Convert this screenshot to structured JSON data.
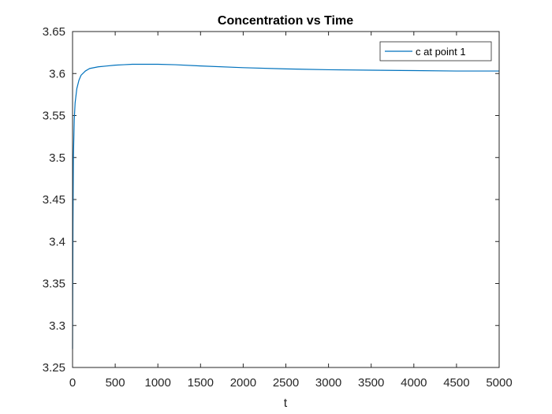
{
  "chart_data": {
    "type": "line",
    "title": "Concentration vs Time",
    "xlabel": "t",
    "ylabel": "",
    "xlim": [
      0,
      5000
    ],
    "ylim": [
      3.25,
      3.65
    ],
    "xticks": [
      0,
      500,
      1000,
      1500,
      2000,
      2500,
      3000,
      3500,
      4000,
      4500,
      5000
    ],
    "xtick_labels": [
      "0",
      "500",
      "1000",
      "1500",
      "2000",
      "2500",
      "3000",
      "3500",
      "4000",
      "4500",
      "5000"
    ],
    "yticks": [
      3.25,
      3.3,
      3.35,
      3.4,
      3.45,
      3.5,
      3.55,
      3.6,
      3.65
    ],
    "ytick_labels": [
      "3.25",
      "3.3",
      "3.35",
      "3.4",
      "3.45",
      "3.5",
      "3.55",
      "3.6",
      "3.65"
    ],
    "grid": false,
    "legend_position": "top-right",
    "series": [
      {
        "name": "c at point 1",
        "color": "#0072BD",
        "x": [
          0,
          5,
          10,
          20,
          30,
          50,
          75,
          100,
          150,
          200,
          300,
          400,
          500,
          600,
          700,
          800,
          900,
          1000,
          1200,
          1500,
          2000,
          2500,
          3000,
          3500,
          4000,
          4500,
          5000
        ],
        "y": [
          3.272,
          3.42,
          3.5,
          3.545,
          3.565,
          3.582,
          3.592,
          3.598,
          3.603,
          3.606,
          3.608,
          3.609,
          3.61,
          3.6105,
          3.611,
          3.611,
          3.611,
          3.611,
          3.6105,
          3.609,
          3.607,
          3.6055,
          3.6045,
          3.604,
          3.6035,
          3.603,
          3.603
        ]
      }
    ]
  }
}
